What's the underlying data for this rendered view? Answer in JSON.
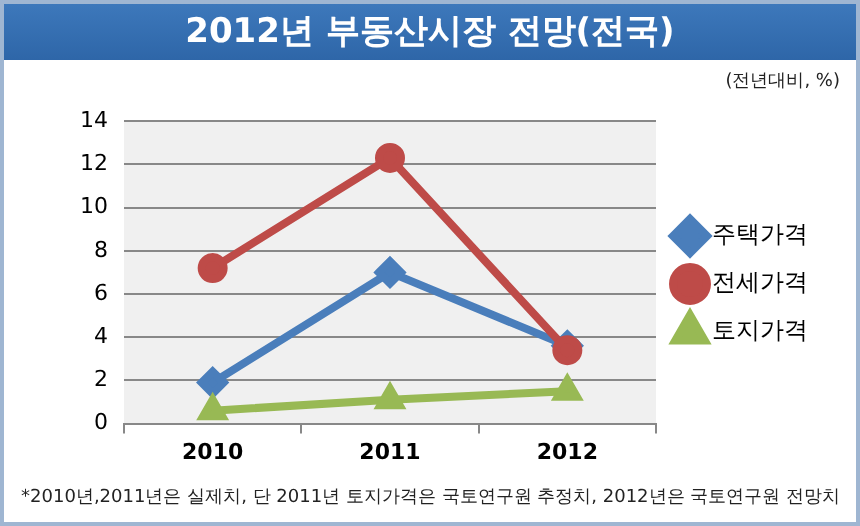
{
  "chart_data": {
    "type": "line",
    "title": "2012년 부동산시장 전망(전국)",
    "subtitle": "(전년대비, %)",
    "categories": [
      "2010",
      "2011",
      "2012"
    ],
    "series": [
      {
        "name": "주택가격",
        "color": "#4a7ebb",
        "values": [
          1.9,
          7.0,
          3.6
        ],
        "marker": "diamond"
      },
      {
        "name": "전세가격",
        "color": "#be4b48",
        "values": [
          7.2,
          12.3,
          3.4
        ],
        "marker": "circle"
      },
      {
        "name": "토지가격",
        "color": "#98b954",
        "values": [
          0.6,
          1.1,
          1.5
        ],
        "marker": "triangle"
      }
    ],
    "ylim": [
      0,
      14
    ],
    "yticks": [
      0,
      2,
      4,
      6,
      8,
      10,
      12,
      14
    ],
    "grid": "y",
    "legend": "right",
    "annotations": [
      "*2010년,2011년은 실제치, 단 2011년 토지가격은 국토연구원 추정치, 2012년은 국토연구원 전망치"
    ]
  }
}
